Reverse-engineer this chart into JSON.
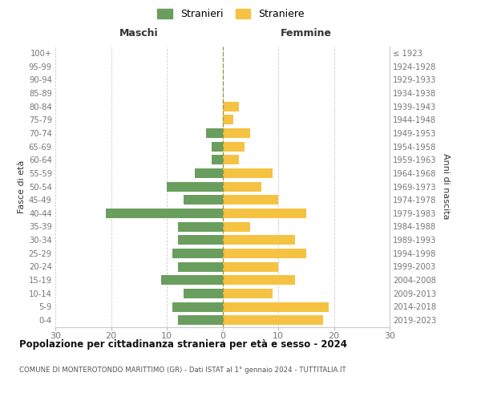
{
  "age_groups": [
    "100+",
    "95-99",
    "90-94",
    "85-89",
    "80-84",
    "75-79",
    "70-74",
    "65-69",
    "60-64",
    "55-59",
    "50-54",
    "45-49",
    "40-44",
    "35-39",
    "30-34",
    "25-29",
    "20-24",
    "15-19",
    "10-14",
    "5-9",
    "0-4"
  ],
  "birth_years": [
    "≤ 1923",
    "1924-1928",
    "1929-1933",
    "1934-1938",
    "1939-1943",
    "1944-1948",
    "1949-1953",
    "1954-1958",
    "1959-1963",
    "1964-1968",
    "1969-1973",
    "1974-1978",
    "1979-1983",
    "1984-1988",
    "1989-1993",
    "1994-1998",
    "1999-2003",
    "2004-2008",
    "2009-2013",
    "2014-2018",
    "2019-2023"
  ],
  "maschi": [
    0,
    0,
    0,
    0,
    0,
    0,
    3,
    2,
    2,
    5,
    10,
    7,
    21,
    8,
    8,
    9,
    8,
    11,
    7,
    9,
    8
  ],
  "femmine": [
    0,
    0,
    0,
    0,
    3,
    2,
    5,
    4,
    3,
    9,
    7,
    10,
    15,
    5,
    13,
    15,
    10,
    13,
    9,
    19,
    18
  ],
  "color_maschi": "#6a9e5e",
  "color_femmine": "#f5c242",
  "title": "Popolazione per cittadinanza straniera per età e sesso - 2024",
  "subtitle": "COMUNE DI MONTEROTONDO MARITTIMO (GR) - Dati ISTAT al 1° gennaio 2024 - TUTTITALIA.IT",
  "label_maschi": "Maschi",
  "label_femmine": "Femmine",
  "ylabel_left": "Fasce di età",
  "ylabel_right": "Anni di nascita",
  "xlim": 30,
  "legend_stranieri": "Stranieri",
  "legend_straniere": "Straniere",
  "bg_color": "#ffffff",
  "grid_color": "#cccccc",
  "tick_color": "#777777",
  "label_color": "#333333",
  "title_color": "#111111",
  "subtitle_color": "#555555",
  "centerline_color": "#999944"
}
